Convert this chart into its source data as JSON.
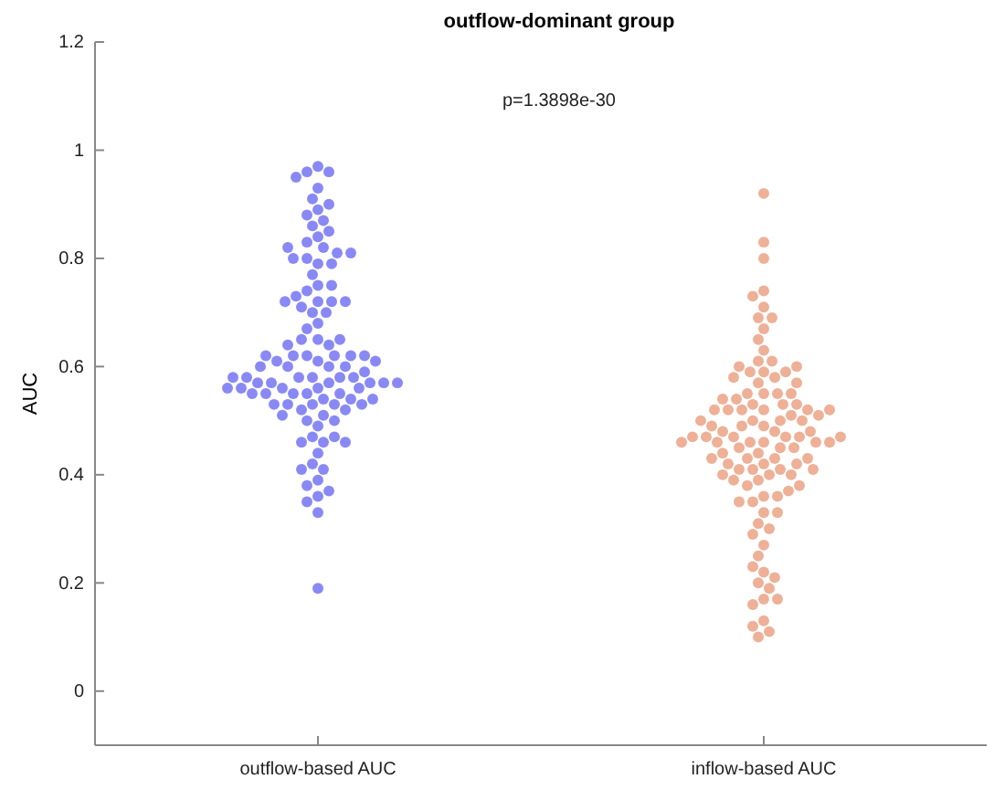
{
  "chart_data": {
    "type": "scatter",
    "title": "outflow-dominant group",
    "ylabel": "AUC",
    "annotations": [
      "p=1.3898e-30"
    ],
    "marker": "circle",
    "grid": false,
    "categories": [
      "outflow-based AUC",
      "inflow-based AUC"
    ],
    "ylim": [
      -0.1,
      1.2
    ],
    "yticks": [
      0,
      0.2,
      0.4,
      0.6,
      0.8,
      1,
      1.2
    ],
    "series": [
      {
        "color": "#3b3bef",
        "x": [
          "outflow-based AUC",
          "outflow-based AUC",
          "outflow-based AUC",
          "outflow-based AUC",
          "outflow-based AUC",
          "outflow-based AUC",
          "outflow-based AUC",
          "outflow-based AUC",
          "outflow-based AUC",
          "outflow-based AUC",
          "outflow-based AUC",
          "outflow-based AUC",
          "outflow-based AUC",
          "outflow-based AUC",
          "outflow-based AUC",
          "outflow-based AUC",
          "outflow-based AUC",
          "outflow-based AUC",
          "outflow-based AUC",
          "outflow-based AUC",
          "outflow-based AUC",
          "outflow-based AUC",
          "outflow-based AUC",
          "outflow-based AUC",
          "outflow-based AUC",
          "outflow-based AUC",
          "outflow-based AUC",
          "outflow-based AUC",
          "outflow-based AUC",
          "outflow-based AUC",
          "outflow-based AUC",
          "outflow-based AUC",
          "outflow-based AUC",
          "outflow-based AUC",
          "outflow-based AUC",
          "outflow-based AUC",
          "outflow-based AUC",
          "outflow-based AUC",
          "outflow-based AUC",
          "outflow-based AUC",
          "outflow-based AUC",
          "outflow-based AUC",
          "outflow-based AUC",
          "outflow-based AUC",
          "outflow-based AUC",
          "outflow-based AUC",
          "outflow-based AUC",
          "outflow-based AUC",
          "outflow-based AUC",
          "outflow-based AUC",
          "outflow-based AUC",
          "outflow-based AUC",
          "outflow-based AUC",
          "outflow-based AUC",
          "outflow-based AUC",
          "outflow-based AUC",
          "outflow-based AUC",
          "outflow-based AUC",
          "outflow-based AUC",
          "outflow-based AUC",
          "outflow-based AUC",
          "outflow-based AUC",
          "outflow-based AUC",
          "outflow-based AUC",
          "outflow-based AUC",
          "outflow-based AUC",
          "outflow-based AUC",
          "outflow-based AUC",
          "outflow-based AUC",
          "outflow-based AUC",
          "outflow-based AUC",
          "outflow-based AUC",
          "outflow-based AUC",
          "outflow-based AUC",
          "outflow-based AUC",
          "outflow-based AUC",
          "outflow-based AUC",
          "outflow-based AUC",
          "outflow-based AUC",
          "outflow-based AUC",
          "outflow-based AUC",
          "outflow-based AUC",
          "outflow-based AUC",
          "outflow-based AUC",
          "outflow-based AUC",
          "outflow-based AUC",
          "outflow-based AUC",
          "outflow-based AUC",
          "outflow-based AUC",
          "outflow-based AUC",
          "outflow-based AUC",
          "outflow-based AUC",
          "outflow-based AUC",
          "outflow-based AUC",
          "outflow-based AUC",
          "outflow-based AUC",
          "outflow-based AUC",
          "outflow-based AUC",
          "outflow-based AUC",
          "outflow-based AUC",
          "outflow-based AUC",
          "outflow-based AUC",
          "outflow-based AUC",
          "outflow-based AUC",
          "outflow-based AUC",
          "outflow-based AUC",
          "outflow-based AUC",
          "outflow-based AUC"
        ],
        "values": [
          0.97,
          0.96,
          0.96,
          0.95,
          0.93,
          0.91,
          0.89,
          0.9,
          0.88,
          0.87,
          0.86,
          0.84,
          0.83,
          0.82,
          0.85,
          0.79,
          0.8,
          0.77,
          0.79,
          0.81,
          0.8,
          0.81,
          0.82,
          0.75,
          0.72,
          0.74,
          0.75,
          0.72,
          0.73,
          0.72,
          0.72,
          0.7,
          0.71,
          0.7,
          0.56,
          0.55,
          0.58,
          0.54,
          0.53,
          0.61,
          0.65,
          0.57,
          0.53,
          0.68,
          0.62,
          0.55,
          0.58,
          0.49,
          0.6,
          0.52,
          0.55,
          0.64,
          0.5,
          0.62,
          0.67,
          0.58,
          0.47,
          0.54,
          0.62,
          0.51,
          0.6,
          0.56,
          0.53,
          0.5,
          0.62,
          0.58,
          0.65,
          0.56,
          0.6,
          0.53,
          0.65,
          0.57,
          0.55,
          0.61,
          0.52,
          0.57,
          0.64,
          0.53,
          0.57,
          0.62,
          0.57,
          0.54,
          0.58,
          0.57,
          0.56,
          0.62,
          0.61,
          0.59,
          0.56,
          0.6,
          0.58,
          0.55,
          0.46,
          0.44,
          0.42,
          0.41,
          0.46,
          0.39,
          0.38,
          0.36,
          0.37,
          0.35,
          0.33,
          0.41,
          0.47,
          0.46,
          0.51,
          0.19
        ]
      },
      {
        "color": "#e27b52",
        "x": [
          "inflow-based AUC",
          "inflow-based AUC",
          "inflow-based AUC",
          "inflow-based AUC",
          "inflow-based AUC",
          "inflow-based AUC",
          "inflow-based AUC",
          "inflow-based AUC",
          "inflow-based AUC",
          "inflow-based AUC",
          "inflow-based AUC",
          "inflow-based AUC",
          "inflow-based AUC",
          "inflow-based AUC",
          "inflow-based AUC",
          "inflow-based AUC",
          "inflow-based AUC",
          "inflow-based AUC",
          "inflow-based AUC",
          "inflow-based AUC",
          "inflow-based AUC",
          "inflow-based AUC",
          "inflow-based AUC",
          "inflow-based AUC",
          "inflow-based AUC",
          "inflow-based AUC",
          "inflow-based AUC",
          "inflow-based AUC",
          "inflow-based AUC",
          "inflow-based AUC",
          "inflow-based AUC",
          "inflow-based AUC",
          "inflow-based AUC",
          "inflow-based AUC",
          "inflow-based AUC",
          "inflow-based AUC",
          "inflow-based AUC",
          "inflow-based AUC",
          "inflow-based AUC",
          "inflow-based AUC",
          "inflow-based AUC",
          "inflow-based AUC",
          "inflow-based AUC",
          "inflow-based AUC",
          "inflow-based AUC",
          "inflow-based AUC",
          "inflow-based AUC",
          "inflow-based AUC",
          "inflow-based AUC",
          "inflow-based AUC",
          "inflow-based AUC",
          "inflow-based AUC",
          "inflow-based AUC",
          "inflow-based AUC",
          "inflow-based AUC",
          "inflow-based AUC",
          "inflow-based AUC",
          "inflow-based AUC",
          "inflow-based AUC",
          "inflow-based AUC",
          "inflow-based AUC",
          "inflow-based AUC",
          "inflow-based AUC",
          "inflow-based AUC",
          "inflow-based AUC",
          "inflow-based AUC",
          "inflow-based AUC",
          "inflow-based AUC",
          "inflow-based AUC",
          "inflow-based AUC",
          "inflow-based AUC",
          "inflow-based AUC",
          "inflow-based AUC",
          "inflow-based AUC",
          "inflow-based AUC",
          "inflow-based AUC",
          "inflow-based AUC",
          "inflow-based AUC",
          "inflow-based AUC",
          "inflow-based AUC",
          "inflow-based AUC",
          "inflow-based AUC",
          "inflow-based AUC",
          "inflow-based AUC",
          "inflow-based AUC",
          "inflow-based AUC",
          "inflow-based AUC",
          "inflow-based AUC",
          "inflow-based AUC",
          "inflow-based AUC",
          "inflow-based AUC",
          "inflow-based AUC",
          "inflow-based AUC",
          "inflow-based AUC",
          "inflow-based AUC",
          "inflow-based AUC",
          "inflow-based AUC",
          "inflow-based AUC",
          "inflow-based AUC",
          "inflow-based AUC",
          "inflow-based AUC",
          "inflow-based AUC",
          "inflow-based AUC",
          "inflow-based AUC",
          "inflow-based AUC",
          "inflow-based AUC",
          "inflow-based AUC",
          "inflow-based AUC"
        ],
        "values": [
          0.92,
          0.83,
          0.8,
          0.74,
          0.73,
          0.71,
          0.69,
          0.69,
          0.67,
          0.65,
          0.63,
          0.61,
          0.59,
          0.46,
          0.49,
          0.42,
          0.41,
          0.43,
          0.52,
          0.46,
          0.4,
          0.5,
          0.48,
          0.57,
          0.41,
          0.36,
          0.53,
          0.45,
          0.59,
          0.5,
          0.41,
          0.55,
          0.39,
          0.61,
          0.47,
          0.52,
          0.35,
          0.43,
          0.58,
          0.49,
          0.4,
          0.55,
          0.45,
          0.59,
          0.36,
          0.51,
          0.42,
          0.6,
          0.47,
          0.38,
          0.53,
          0.44,
          0.52,
          0.39,
          0.47,
          0.53,
          0.48,
          0.4,
          0.55,
          0.45,
          0.58,
          0.5,
          0.42,
          0.6,
          0.46,
          0.52,
          0.37,
          0.55,
          0.48,
          0.57,
          0.43,
          0.52,
          0.38,
          0.49,
          0.54,
          0.41,
          0.46,
          0.51,
          0.44,
          0.54,
          0.47,
          0.43,
          0.5,
          0.46,
          0.52,
          0.47,
          0.47,
          0.46,
          0.35,
          0.33,
          0.31,
          0.33,
          0.3,
          0.29,
          0.27,
          0.25,
          0.22,
          0.2,
          0.21,
          0.23,
          0.17,
          0.16,
          0.17,
          0.19,
          0.13,
          0.12,
          0.11,
          0.1
        ]
      }
    ]
  }
}
